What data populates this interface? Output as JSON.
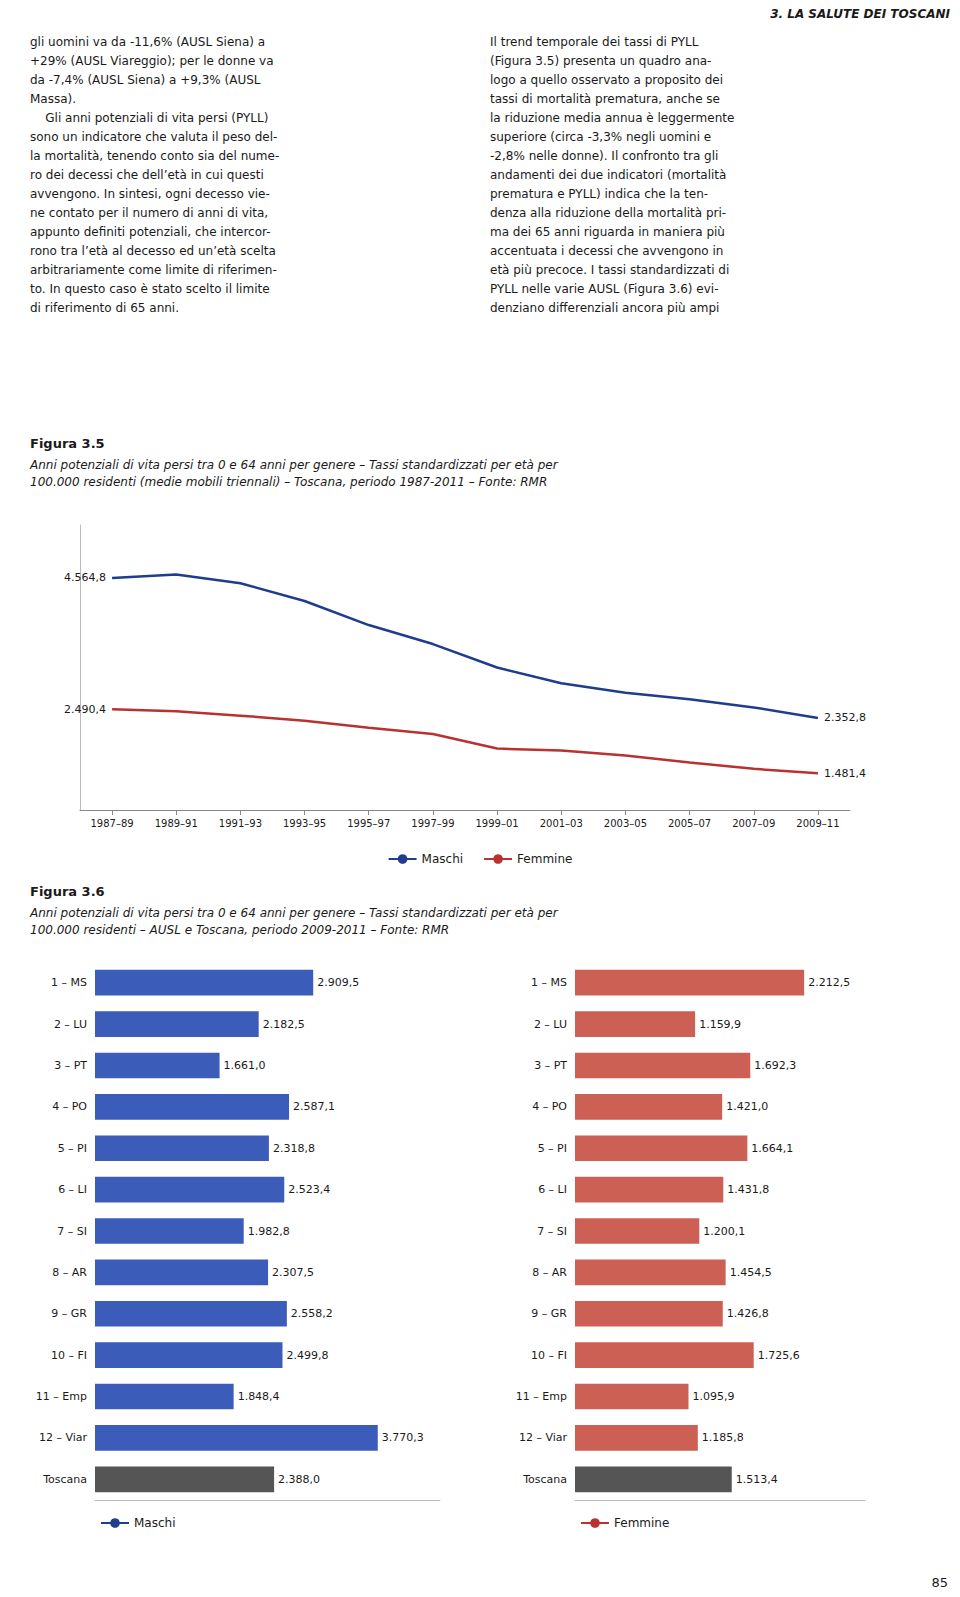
{
  "chart_data": [
    {
      "type": "line",
      "title": "Figura 3.5",
      "subtitle": "Anni potenziali di vita persi tra 0 e 64 anni per genere – Tassi standardizzati per età per\n100.000 residenti (medie mobili triennali) – Toscana, periodo 1987-2011 – Fonte: RMR",
      "annotations": [
        "3. LA SALUTE DEI TOSCANI",
        "gli uomini va da -11,6% (AUSL Siena) a\n+29% (AUSL Viareggio); per le donne va\nda -7,4% (AUSL Siena) a +9,3% (AUSL\nMassa).\n    Gli anni potenziali di vita persi (PYLL)\nsono un indicatore che valuta il peso del-\nla mortalità, tenendo conto sia del nume-\nro dei decessi che dell’età in cui questi\navvengono. In sintesi, ogni decesso vie-\nne contato per il numero di anni di vita,\nappunto definiti potenziali, che intercor-\nrono tra l’età al decesso ed un’età scelta\narbitrariamente come limite di riferimen-\nto. In questo caso è stato scelto il limite\ndi riferimento di 65 anni.",
        "Il trend temporale dei tassi di PYLL\n(Figura 3.5) presenta un quadro ana-\nlogo a quello osservato a proposito dei\ntassi di mortalità prematura, anche se\nla riduzione media annua è leggermente\nsuperiore (circa -3,3% negli uomini e\n-2,8% nelle donne). Il confronto tra gli\nandamenti dei due indicatori (mortalità\nprematura e PYLL) indica che la ten-\ndenza alla riduzione della mortalità pri-\nma dei 65 anni riguarda in maniera più\naccentuata i decessi che avvengono in\netà più precoce. I tassi standardizzati di\nPYLL nelle varie AUSL (Figura 3.6) evi-\ndenziano differenziali ancora più ampi",
        "85"
      ],
      "categories": [
        "1987–89",
        "1989–91",
        "1991–93",
        "1993–95",
        "1995–97",
        "1997–99",
        "1999–01",
        "2001–03",
        "2003–05",
        "2005–07",
        "2007–09",
        "2009–11"
      ],
      "series": [
        {
          "name": "Maschi",
          "color": "#1F3D8C",
          "values": [
            4564.8,
            4620.0,
            4480.0,
            4200.0,
            3820.0,
            3520.0,
            3150.0,
            2900.0,
            2750.0,
            2650.0,
            2520.0,
            2352.8
          ],
          "value_labels": [
            "4.564,8",
            null,
            null,
            null,
            null,
            null,
            null,
            null,
            null,
            null,
            null,
            "2.352,8"
          ]
        },
        {
          "name": "Femmine",
          "color": "#B83232",
          "values": [
            2490.4,
            2460.0,
            2390.0,
            2310.0,
            2200.0,
            2100.0,
            1870.0,
            1840.0,
            1760.0,
            1650.0,
            1550.0,
            1481.4
          ],
          "value_labels": [
            "2.490,4",
            null,
            null,
            null,
            null,
            null,
            null,
            null,
            null,
            null,
            null,
            "1.481,4"
          ]
        }
      ],
      "ylim": [
        900,
        5400
      ],
      "tick_labels": "x",
      "grid": false,
      "data_labels": true,
      "legend": "bottom"
    },
    {
      "type": "bar",
      "orientation": "horizontal",
      "title": "Figura 3.6",
      "subtitle": "Anni potenziali di vita persi tra 0 e 64 anni per genere – Tassi standardizzati per età per\n100.000 residenti – AUSL e Toscana, periodo 2009-2011 – Fonte: RMR",
      "categories": [
        "1 – MS",
        "2 – LU",
        "3 – PT",
        "4 – PO",
        "5 – PI",
        "6 – LI",
        "7 – SI",
        "8 – AR",
        "9 – GR",
        "10 – FI",
        "11 – Emp",
        "12 – Viar",
        "Toscana"
      ],
      "series": [
        {
          "name": "Maschi",
          "color": "#3B5CB8",
          "colors": [
            "#3B5CB8",
            "#3B5CB8",
            "#3B5CB8",
            "#3B5CB8",
            "#3B5CB8",
            "#3B5CB8",
            "#3B5CB8",
            "#3B5CB8",
            "#3B5CB8",
            "#3B5CB8",
            "#3B5CB8",
            "#3B5CB8",
            "#555555"
          ],
          "values": [
            2909.5,
            2182.5,
            1661.0,
            2587.1,
            2318.8,
            2523.4,
            1982.8,
            2307.5,
            2558.2,
            2499.8,
            1848.4,
            3770.3,
            2388.0
          ],
          "value_labels": [
            "2.909,5",
            "2.182,5",
            "1.661,0",
            "2.587,1",
            "2.318,8",
            "2.523,4",
            "1.982,8",
            "2.307,5",
            "2.558,2",
            "2.499,8",
            "1.848,4",
            "3.770,3",
            "2.388,0"
          ]
        }
      ],
      "xlim": [
        0,
        4600
      ],
      "tick_labels": "y",
      "grid": false,
      "data_labels": true,
      "legend": "lower left"
    },
    {
      "type": "bar",
      "orientation": "horizontal",
      "categories": [
        "1 – MS",
        "2 – LU",
        "3 – PT",
        "4 – PO",
        "5 – PI",
        "6 – LI",
        "7 – SI",
        "8 – AR",
        "9 – GR",
        "10 – FI",
        "11 – Emp",
        "12 – Viar",
        "Toscana"
      ],
      "series": [
        {
          "name": "Femmine",
          "color": "#CD6055",
          "colors": [
            "#CD6055",
            "#CD6055",
            "#CD6055",
            "#CD6055",
            "#CD6055",
            "#CD6055",
            "#CD6055",
            "#CD6055",
            "#CD6055",
            "#CD6055",
            "#CD6055",
            "#CD6055",
            "#555555"
          ],
          "values": [
            2212.5,
            1159.9,
            1692.3,
            1421.0,
            1664.1,
            1431.8,
            1200.1,
            1454.5,
            1426.8,
            1725.6,
            1095.9,
            1185.8,
            1513.4
          ],
          "value_labels": [
            "2.212,5",
            "1.159,9",
            "1.692,3",
            "1.421,0",
            "1.664,1",
            "1.431,8",
            "1.200,1",
            "1.454,5",
            "1.426,8",
            "1.725,6",
            "1.095,9",
            "1.185,8",
            "1.513,4"
          ]
        }
      ],
      "xlim": [
        0,
        2800
      ],
      "tick_labels": "y",
      "grid": false,
      "data_labels": true,
      "legend": "lower left"
    }
  ]
}
